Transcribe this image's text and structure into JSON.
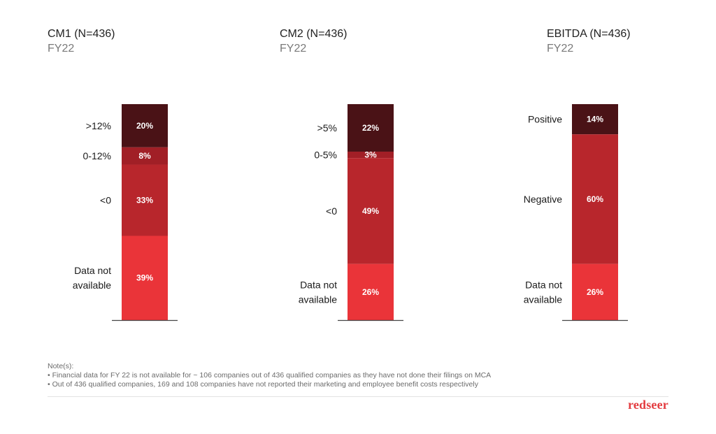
{
  "colors": {
    "dark": "#4a1216",
    "mid": "#a11f26",
    "red": "#b8262c",
    "bright": "#ea3439",
    "axis": "#444444"
  },
  "chart_data": [
    {
      "type": "bar",
      "title": "CM1 (N=436)",
      "subtitle": "FY22",
      "stacked": true,
      "segments": [
        {
          "label": ">12%",
          "value": 20,
          "value_label": "20%",
          "color": "#4a1216"
        },
        {
          "label": "0-12%",
          "value": 8,
          "value_label": "8%",
          "color": "#a11f26"
        },
        {
          "label": "<0",
          "value": 33,
          "value_label": "33%",
          "color": "#b8262c"
        },
        {
          "label": "Data not available",
          "value": 39,
          "value_label": "39%",
          "color": "#ea3439"
        }
      ]
    },
    {
      "type": "bar",
      "title": "CM2 (N=436)",
      "subtitle": "FY22",
      "stacked": true,
      "segments": [
        {
          "label": ">5%",
          "value": 22,
          "value_label": "22%",
          "color": "#4a1216"
        },
        {
          "label": "0-5%",
          "value": 3,
          "value_label": "3%",
          "color": "#a11f26"
        },
        {
          "label": "<0",
          "value": 49,
          "value_label": "49%",
          "color": "#b8262c"
        },
        {
          "label": "Data not available",
          "value": 26,
          "value_label": "26%",
          "color": "#ea3439"
        }
      ]
    },
    {
      "type": "bar",
      "title": "EBITDA (N=436)",
      "subtitle": "FY22",
      "stacked": true,
      "segments": [
        {
          "label": "Positive",
          "value": 14,
          "value_label": "14%",
          "color": "#4a1216"
        },
        {
          "label": "Negative",
          "value": 60,
          "value_label": "60%",
          "color": "#b8262c"
        },
        {
          "label": "Data not available",
          "value": 26,
          "value_label": "26%",
          "color": "#ea3439"
        }
      ]
    }
  ],
  "notes": {
    "heading": "Note(s):",
    "items": [
      "• Financial data for FY 22 is not available for ~ 106 companies out of 436 qualified companies as they have not done their filings on MCA",
      "• Out of 436 qualified companies, 169 and 108 companies have not reported their marketing and employee benefit costs respectively"
    ]
  },
  "brand": {
    "logo_text": "redseer"
  }
}
